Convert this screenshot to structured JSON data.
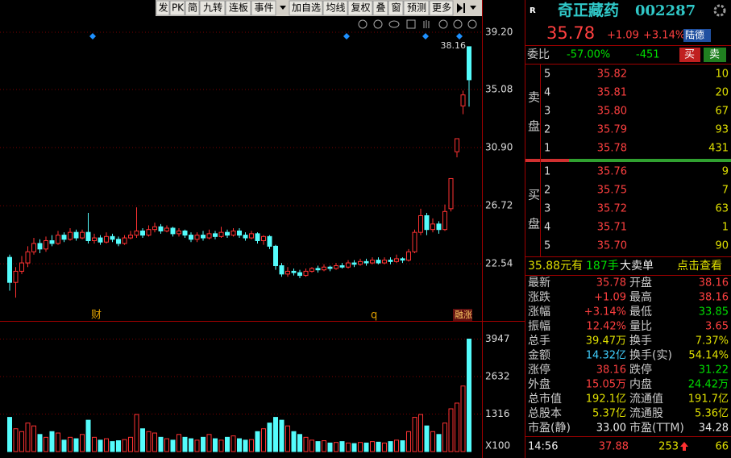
{
  "toolbar": [
    "发",
    "PK",
    "简",
    "九转",
    "连板",
    "事件",
    "加自选",
    "均线",
    "复权",
    "叠",
    "窗",
    "预测",
    "更多"
  ],
  "chart_data": [
    {
      "type": "candlestick",
      "max_label": "38.16",
      "events": [
        "财",
        "q",
        "融涨"
      ],
      "ylim": [
        18.6,
        39.78
      ],
      "yticks": [
        {
          "value": 39.2,
          "label": "39.20"
        },
        35.08,
        {
          "value": 30.9,
          "label": "30.90"
        },
        26.72,
        22.54
      ],
      "grid": true,
      "open": [
        23.0,
        21.2,
        22.0,
        22.6,
        23.4,
        24.0,
        23.6,
        24.2,
        24.0,
        24.6,
        24.3,
        24.8,
        24.4,
        24.8,
        24.2,
        24.4,
        24.1,
        24.5,
        24.3,
        24.0,
        24.4,
        24.6,
        24.9,
        24.6,
        25.0,
        25.2,
        24.9,
        25.1,
        24.7,
        24.9,
        24.6,
        24.3,
        24.6,
        24.4,
        24.7,
        24.5,
        24.8,
        24.6,
        24.9,
        24.6,
        24.4,
        24.7,
        24.2,
        24.5,
        23.8,
        22.4,
        21.8,
        22.0,
        21.9,
        21.7,
        22.0,
        22.2,
        22.1,
        22.3,
        22.2,
        22.4,
        22.3,
        22.6,
        22.5,
        22.7,
        22.6,
        22.8,
        22.6,
        22.8,
        22.7,
        22.9,
        22.8,
        23.4,
        24.8,
        26.0,
        25.0,
        25.4,
        25.0,
        26.5,
        30.6,
        33.9,
        38.16
      ],
      "high": [
        23.2,
        22.3,
        23.1,
        23.8,
        24.4,
        24.3,
        24.5,
        24.6,
        24.9,
        24.8,
        25.1,
        25.0,
        25.0,
        26.2,
        24.7,
        24.6,
        24.8,
        24.7,
        24.5,
        24.6,
        24.9,
        26.6,
        25.1,
        25.3,
        25.5,
        25.4,
        25.3,
        25.2,
        25.1,
        25.0,
        24.8,
        24.8,
        24.9,
        25.0,
        24.9,
        25.2,
        25.0,
        25.1,
        25.1,
        24.8,
        24.9,
        24.8,
        24.6,
        24.6,
        23.9,
        22.6,
        22.3,
        22.2,
        22.1,
        22.2,
        22.3,
        22.4,
        22.5,
        22.4,
        22.6,
        22.6,
        22.8,
        22.8,
        22.9,
        22.9,
        23.0,
        23.0,
        23.0,
        23.0,
        23.2,
        23.0,
        23.6,
        25.0,
        26.5,
        26.2,
        25.8,
        25.6,
        26.8,
        28.67,
        31.54,
        35.0,
        38.16
      ],
      "low": [
        20.6,
        20.1,
        21.8,
        22.3,
        23.2,
        23.3,
        23.4,
        23.8,
        23.9,
        24.1,
        24.2,
        24.2,
        24.3,
        24.0,
        24.0,
        23.9,
        24.0,
        24.1,
        23.8,
        23.9,
        24.3,
        24.4,
        24.4,
        24.5,
        24.8,
        24.7,
        24.8,
        24.5,
        24.5,
        24.4,
        24.1,
        24.1,
        24.2,
        24.3,
        24.3,
        24.4,
        24.4,
        24.5,
        24.4,
        24.2,
        24.3,
        24.0,
        23.9,
        23.6,
        22.1,
        21.6,
        21.6,
        21.7,
        21.5,
        21.6,
        21.9,
        21.9,
        22.0,
        22.0,
        22.1,
        22.2,
        22.2,
        22.3,
        22.4,
        22.4,
        22.5,
        22.5,
        22.5,
        22.5,
        22.6,
        22.6,
        22.7,
        23.3,
        24.6,
        24.6,
        24.8,
        24.7,
        24.9,
        26.3,
        30.2,
        33.3,
        33.85
      ],
      "close": [
        21.2,
        22.0,
        22.6,
        23.4,
        24.0,
        23.6,
        24.2,
        24.0,
        24.6,
        24.3,
        24.8,
        24.4,
        24.8,
        24.2,
        24.4,
        24.1,
        24.5,
        24.3,
        24.0,
        24.4,
        24.6,
        24.9,
        24.6,
        25.0,
        25.2,
        24.9,
        25.1,
        24.7,
        24.9,
        24.6,
        24.3,
        24.6,
        24.4,
        24.7,
        24.5,
        24.8,
        24.6,
        24.9,
        24.6,
        24.4,
        24.7,
        24.2,
        24.5,
        23.8,
        22.4,
        21.8,
        22.0,
        21.9,
        21.7,
        22.0,
        22.2,
        22.1,
        22.3,
        22.2,
        22.4,
        22.3,
        22.6,
        22.5,
        22.7,
        22.6,
        22.8,
        22.6,
        22.8,
        22.7,
        22.9,
        22.8,
        23.4,
        24.8,
        26.0,
        25.0,
        25.4,
        25.0,
        26.3,
        28.67,
        31.54,
        34.69,
        35.78
      ]
    },
    {
      "type": "bar",
      "unit_label": "X100",
      "ylim": [
        0,
        4245
      ],
      "yticks": [
        3947,
        2632,
        1316
      ],
      "grid": true,
      "values": [
        1200,
        800,
        700,
        1000,
        900,
        600,
        500,
        700,
        650,
        400,
        500,
        450,
        600,
        1100,
        500,
        400,
        450,
        350,
        380,
        420,
        500,
        1300,
        800,
        700,
        650,
        500,
        450,
        400,
        600,
        500,
        450,
        400,
        500,
        600,
        450,
        400,
        500,
        550,
        450,
        400,
        420,
        700,
        800,
        1000,
        1200,
        1100,
        900,
        700,
        600,
        500,
        400,
        350,
        380,
        300,
        320,
        350,
        300,
        280,
        320,
        300,
        350,
        330,
        300,
        350,
        400,
        380,
        700,
        1200,
        1300,
        900,
        700,
        600,
        1000,
        1500,
        1700,
        2300,
        3947
      ]
    }
  ],
  "panel": {
    "market": "R",
    "name": "奇正藏药",
    "code": "002287",
    "price": "35.78",
    "change": "+1.09",
    "pct": "+3.14%",
    "tag": "陆德",
    "weibi": {
      "label": "委比",
      "ratio": "-57.00%",
      "diff": "-451",
      "buy": "买",
      "sell": "卖"
    },
    "ask_label": [
      "卖",
      "盘"
    ],
    "bid_label": [
      "买",
      "盘"
    ],
    "asks": [
      [
        "5",
        "35.82",
        "10"
      ],
      [
        "4",
        "35.81",
        "20"
      ],
      [
        "3",
        "35.80",
        "67"
      ],
      [
        "2",
        "35.79",
        "93"
      ],
      [
        "1",
        "35.78",
        "431"
      ]
    ],
    "bids": [
      [
        "1",
        "35.76",
        "9"
      ],
      [
        "2",
        "35.75",
        "7"
      ],
      [
        "3",
        "35.72",
        "63"
      ],
      [
        "4",
        "35.71",
        "1"
      ],
      [
        "5",
        "35.70",
        "90"
      ]
    ],
    "bigorder": [
      "35.88元有",
      "187手",
      "大卖单",
      "点击查看"
    ],
    "stats": [
      [
        "最新",
        "35.78",
        "开盘",
        "38.16"
      ],
      [
        "涨跌",
        "+1.09",
        "最高",
        "38.16"
      ],
      [
        "涨幅",
        "+3.14%",
        "最低",
        "33.85"
      ],
      [
        "振幅",
        "12.42%",
        "量比",
        "3.65"
      ],
      [
        "总手",
        "39.47万",
        "换手",
        "7.37%"
      ],
      [
        "金额",
        "14.32亿",
        "换手(实)",
        "54.14%"
      ],
      [
        "涨停",
        "38.16",
        "跌停",
        "31.22"
      ],
      [
        "外盘",
        "15.05万",
        "内盘",
        "24.42万"
      ],
      [
        "总市值",
        "192.1亿",
        "流通值",
        "191.7亿"
      ],
      [
        "总股本",
        "5.37亿",
        "流通股",
        "5.36亿"
      ],
      [
        "市盈(静)",
        "33.00",
        "市盈(TTM)",
        "34.28"
      ]
    ],
    "tick": [
      "14:56",
      "37.88",
      "253",
      "66"
    ]
  }
}
